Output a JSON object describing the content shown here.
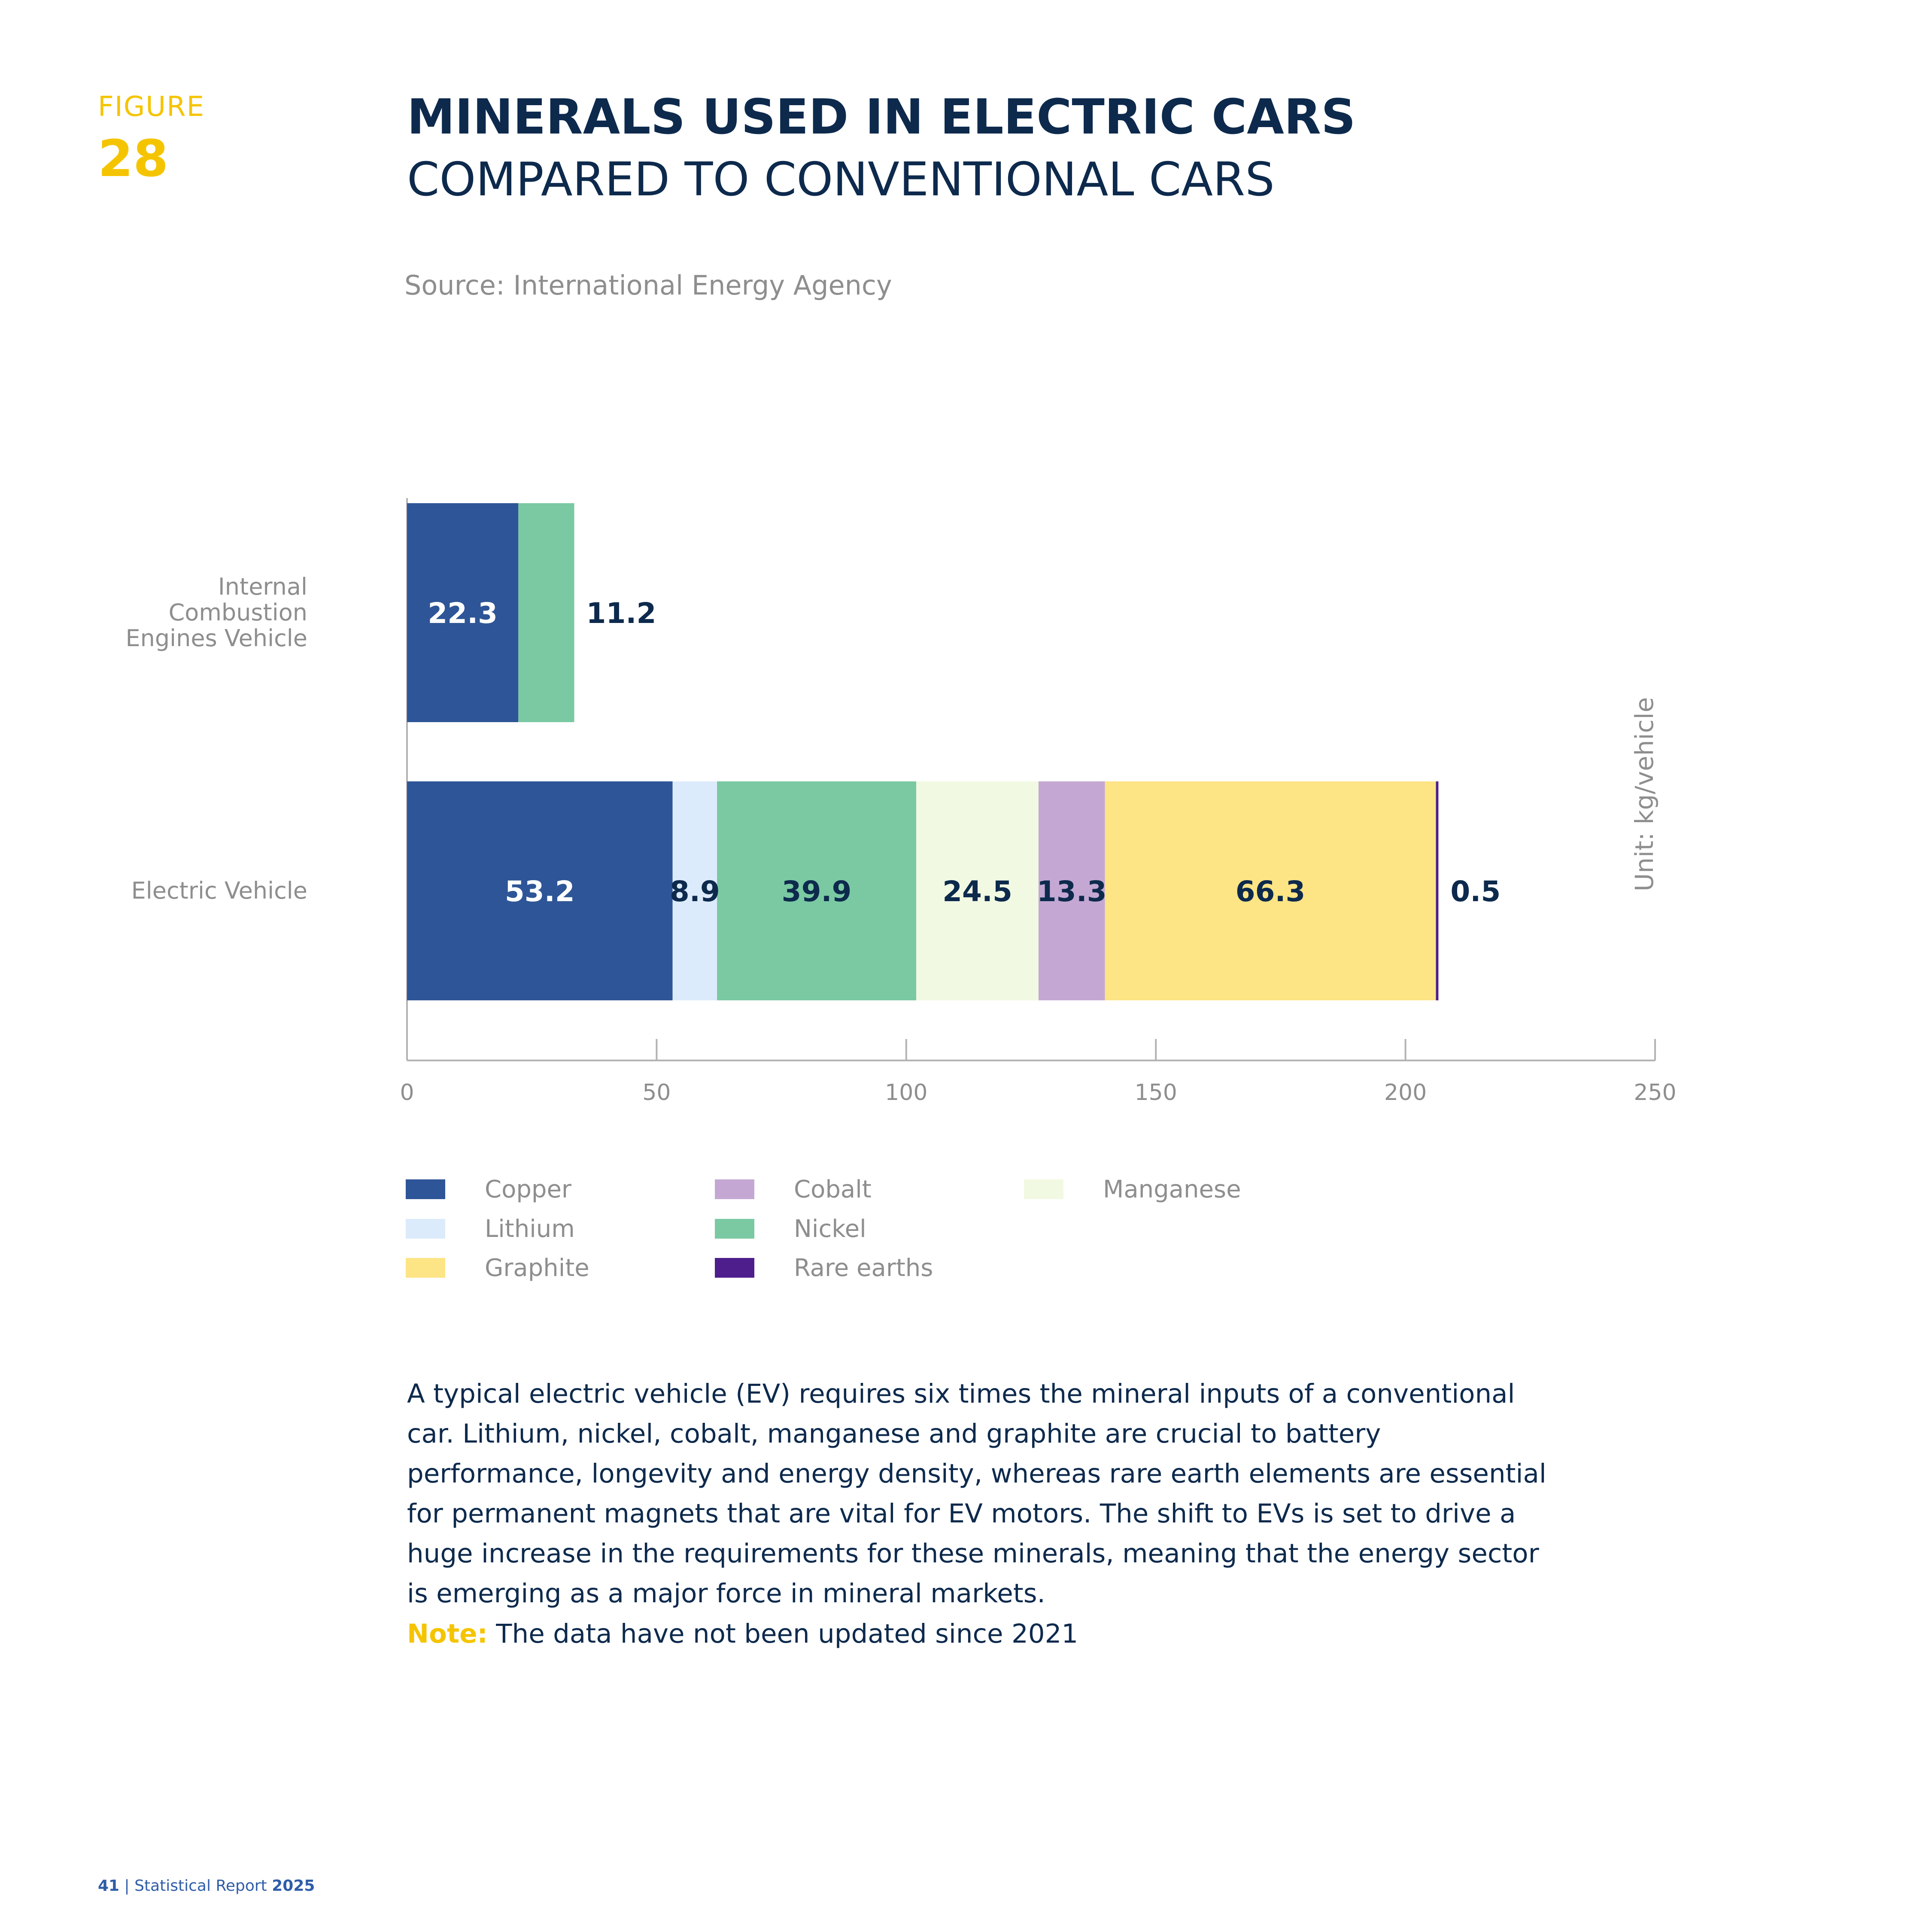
{
  "figure": {
    "label": "FIGURE",
    "number": "28"
  },
  "title": {
    "main": "MINERALS USED IN ELECTRIC CARS",
    "sub": "COMPARED TO CONVENTIONAL CARS"
  },
  "source": "Source: International Energy Agency",
  "chart_data": {
    "type": "bar",
    "orientation": "horizontal",
    "stacked": true,
    "categories": [
      "Internal Combustion Engines Vehicle",
      "Electric Vehicle"
    ],
    "category_label_lines": [
      [
        "Internal",
        "Combustion",
        "Engines Vehicle"
      ],
      [
        "Electric Vehicle"
      ]
    ],
    "series": [
      {
        "name": "Copper",
        "color": "#2e5597",
        "values": [
          22.3,
          53.2
        ],
        "labels": [
          "22.3",
          "53.2"
        ]
      },
      {
        "name": "Lithium",
        "color": "#dcebfb",
        "values": [
          0,
          8.9
        ],
        "labels": [
          "",
          "8.9"
        ]
      },
      {
        "name": "Nickel",
        "color": "#7ac9a3",
        "values": [
          11.2,
          39.9
        ],
        "labels": [
          "11.2",
          "39.9"
        ]
      },
      {
        "name": "Manganese",
        "color": "#f2f9e2",
        "values": [
          0,
          24.5
        ],
        "labels": [
          "",
          "24.5"
        ]
      },
      {
        "name": "Cobalt",
        "color": "#c4a8d3",
        "values": [
          0,
          13.3
        ],
        "labels": [
          "",
          "13.3"
        ]
      },
      {
        "name": "Graphite",
        "color": "#fde485",
        "values": [
          0,
          66.3
        ],
        "labels": [
          "",
          "66.3"
        ]
      },
      {
        "name": "Rare earths",
        "color": "#4e1e8c",
        "values": [
          0,
          0.5
        ],
        "labels": [
          "",
          "0.5"
        ]
      }
    ],
    "xlim": [
      0,
      250
    ],
    "xticks": [
      0,
      50,
      100,
      150,
      200,
      250
    ],
    "unit_label": "Unit: kg/vehicle",
    "grid": false,
    "legend_position": "bottom",
    "legend_order": [
      "Copper",
      "Lithium",
      "Graphite",
      "Cobalt",
      "Nickel",
      "Rare earths",
      "Manganese"
    ]
  },
  "body_text": "A typical electric vehicle (EV) requires six times the mineral inputs of a conventional car. Lithium, nickel, cobalt, manganese and graphite are crucial to battery performance, longevity and energy density, whereas rare earth elements are essential for permanent magnets that are vital for EV motors. The shift to EVs is set to drive a huge increase in the requirements for these minerals, meaning that the energy sector is emerging as a major force in mineral markets.",
  "note": {
    "label": "Note:",
    "text": " The data have not been updated since 2021"
  },
  "footer": {
    "page": "41",
    "separator": " | ",
    "report": "Statistical Report ",
    "year": "2025"
  }
}
